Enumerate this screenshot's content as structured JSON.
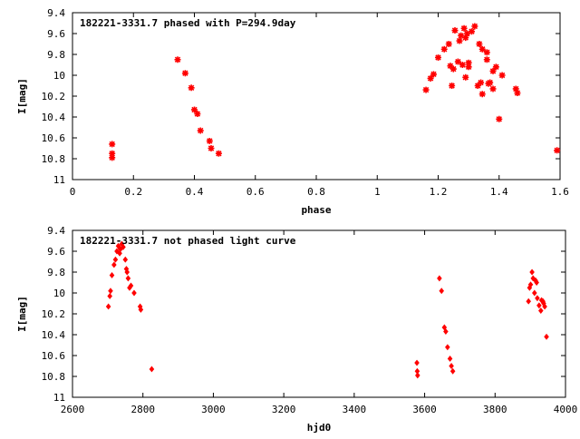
{
  "colors": {
    "marker": "#ff0000",
    "axis": "#000000",
    "background": "#ffffff"
  },
  "chart_data": [
    {
      "type": "scatter",
      "title": "182221-3331.7 phased with P=294.9day",
      "xlabel": "phase",
      "ylabel": "I[mag]",
      "xlim": [
        0,
        1.6
      ],
      "ylim": [
        11,
        9.4
      ],
      "y_inverted": true,
      "xticks": [
        0,
        0.2,
        0.4,
        0.6,
        0.8,
        1,
        1.2,
        1.4,
        1.6
      ],
      "xtick_labels": [
        "0",
        "0.2",
        "0.4",
        "0.6",
        "0.8",
        "1",
        "1.2",
        "1.4",
        "1.6"
      ],
      "yticks": [
        9.4,
        9.6,
        9.8,
        10,
        10.2,
        10.4,
        10.6,
        10.8,
        11
      ],
      "ytick_labels": [
        "9.4",
        "9.6",
        "9.8",
        "10",
        "10.2",
        "10.4",
        "10.6",
        "10.8",
        "11"
      ],
      "grid": false,
      "marker": "asterisk",
      "series": [
        {
          "points": [
            [
              0.13,
              10.66
            ],
            [
              0.13,
              10.75
            ],
            [
              0.13,
              10.79
            ],
            [
              0.345,
              9.85
            ],
            [
              0.37,
              9.98
            ],
            [
              0.39,
              10.12
            ],
            [
              0.4,
              10.33
            ],
            [
              0.41,
              10.37
            ],
            [
              0.42,
              10.53
            ],
            [
              0.45,
              10.63
            ],
            [
              0.455,
              10.7
            ],
            [
              0.48,
              10.75
            ],
            [
              1.16,
              10.14
            ],
            [
              1.175,
              10.03
            ],
            [
              1.185,
              9.99
            ],
            [
              1.2,
              9.83
            ],
            [
              1.22,
              9.75
            ],
            [
              1.235,
              9.7
            ],
            [
              1.24,
              9.91
            ],
            [
              1.245,
              10.1
            ],
            [
              1.25,
              9.94
            ],
            [
              1.255,
              9.57
            ],
            [
              1.265,
              9.87
            ],
            [
              1.27,
              9.67
            ],
            [
              1.275,
              9.62
            ],
            [
              1.28,
              9.9
            ],
            [
              1.285,
              9.55
            ],
            [
              1.29,
              9.64
            ],
            [
              1.29,
              10.02
            ],
            [
              1.295,
              9.6
            ],
            [
              1.3,
              9.88
            ],
            [
              1.3,
              9.92
            ],
            [
              1.31,
              9.58
            ],
            [
              1.32,
              9.53
            ],
            [
              1.33,
              10.1
            ],
            [
              1.335,
              9.7
            ],
            [
              1.34,
              10.07
            ],
            [
              1.345,
              9.75
            ],
            [
              1.345,
              10.18
            ],
            [
              1.36,
              9.78
            ],
            [
              1.36,
              9.85
            ],
            [
              1.365,
              10.08
            ],
            [
              1.37,
              10.07
            ],
            [
              1.38,
              9.96
            ],
            [
              1.38,
              10.13
            ],
            [
              1.39,
              9.92
            ],
            [
              1.4,
              10.42
            ],
            [
              1.41,
              10.0
            ],
            [
              1.455,
              10.13
            ],
            [
              1.46,
              10.17
            ],
            [
              1.59,
              10.72
            ]
          ]
        }
      ]
    },
    {
      "type": "scatter",
      "title": "182221-3331.7 not phased light curve",
      "xlabel": "hjd0",
      "ylabel": "I[mag]",
      "xlim": [
        2600,
        4000
      ],
      "ylim": [
        11,
        9.4
      ],
      "y_inverted": true,
      "xticks": [
        2600,
        2800,
        3000,
        3200,
        3400,
        3600,
        3800,
        4000
      ],
      "xtick_labels": [
        "2600",
        "2800",
        "3000",
        "3200",
        "3400",
        "3600",
        "3800",
        "4000"
      ],
      "yticks": [
        9.4,
        9.6,
        9.8,
        10,
        10.2,
        10.4,
        10.6,
        10.8,
        11
      ],
      "ytick_labels": [
        "9.4",
        "9.6",
        "9.8",
        "10",
        "10.2",
        "10.4",
        "10.6",
        "10.8",
        "11"
      ],
      "grid": false,
      "marker": "diamond",
      "series": [
        {
          "points": [
            [
              2702,
              10.13
            ],
            [
              2706,
              10.03
            ],
            [
              2708,
              9.98
            ],
            [
              2712,
              9.83
            ],
            [
              2718,
              9.73
            ],
            [
              2722,
              9.68
            ],
            [
              2726,
              9.6
            ],
            [
              2730,
              9.55
            ],
            [
              2734,
              9.62
            ],
            [
              2736,
              9.58
            ],
            [
              2740,
              9.53
            ],
            [
              2744,
              9.56
            ],
            [
              2750,
              9.68
            ],
            [
              2753,
              9.77
            ],
            [
              2755,
              9.8
            ],
            [
              2758,
              9.86
            ],
            [
              2762,
              9.95
            ],
            [
              2766,
              9.93
            ],
            [
              2775,
              10.0
            ],
            [
              2792,
              10.13
            ],
            [
              2794,
              10.16
            ],
            [
              2825,
              10.73
            ],
            [
              3578,
              10.67
            ],
            [
              3579,
              10.75
            ],
            [
              3580,
              10.79
            ],
            [
              3642,
              9.86
            ],
            [
              3648,
              9.98
            ],
            [
              3656,
              10.33
            ],
            [
              3660,
              10.37
            ],
            [
              3665,
              10.52
            ],
            [
              3672,
              10.63
            ],
            [
              3676,
              10.7
            ],
            [
              3680,
              10.75
            ],
            [
              3895,
              10.08
            ],
            [
              3898,
              9.95
            ],
            [
              3901,
              9.92
            ],
            [
              3905,
              9.8
            ],
            [
              3908,
              9.86
            ],
            [
              3912,
              10.0
            ],
            [
              3915,
              9.88
            ],
            [
              3918,
              9.9
            ],
            [
              3920,
              10.05
            ],
            [
              3925,
              10.12
            ],
            [
              3930,
              10.17
            ],
            [
              3932,
              10.07
            ],
            [
              3936,
              10.08
            ],
            [
              3938,
              10.1
            ],
            [
              3941,
              10.13
            ],
            [
              3946,
              10.42
            ]
          ]
        }
      ]
    }
  ]
}
